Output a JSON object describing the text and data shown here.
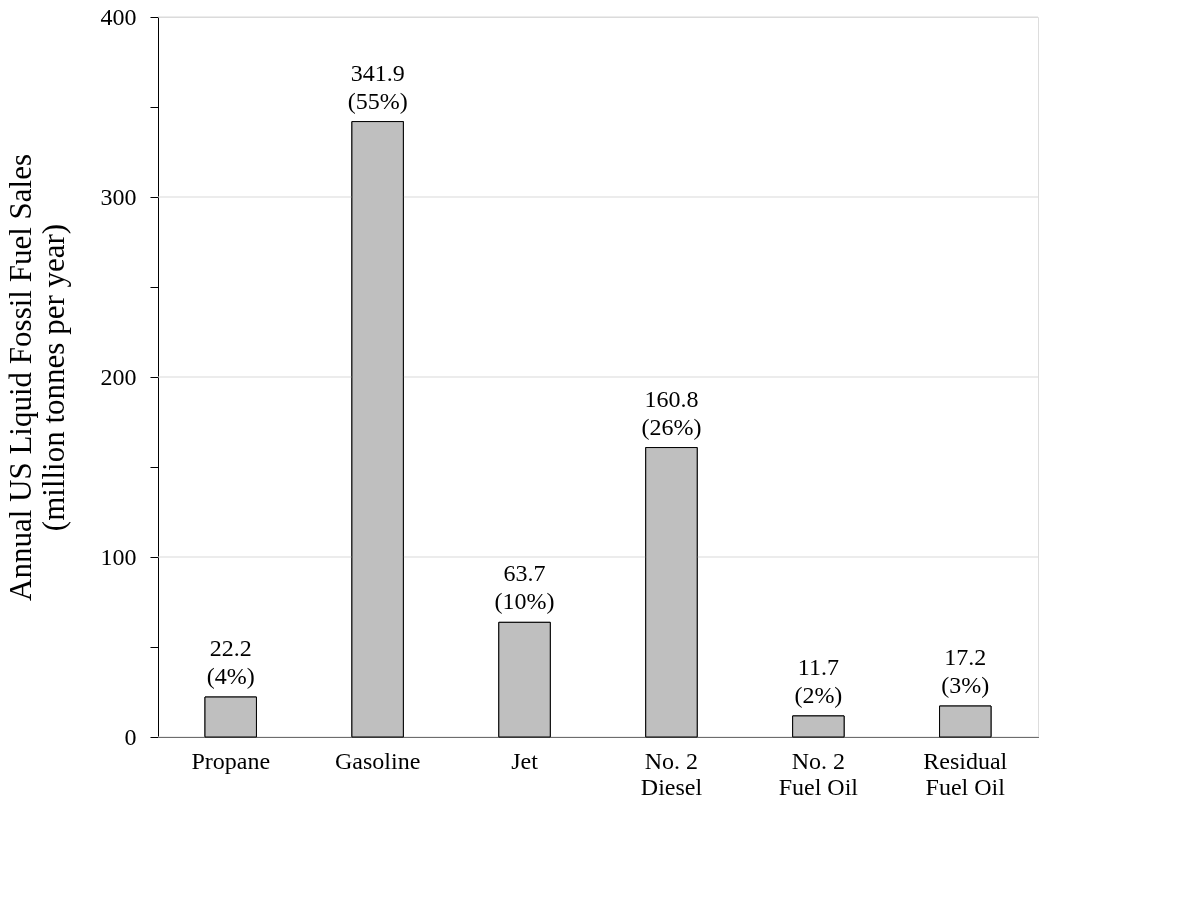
{
  "chart_data": {
    "type": "bar",
    "ylabel": "Annual US Liquid Fossil Fuel Sales\n(million tonnes per year)",
    "categories": [
      "Propane",
      "Gasoline",
      "Jet",
      "No. 2\nDiesel",
      "No. 2\nFuel Oil",
      "Residual\nFuel Oil"
    ],
    "values": [
      22.2,
      341.9,
      63.7,
      160.8,
      11.7,
      17.2
    ],
    "value_labels": [
      "22.2\n(4%)",
      "341.9\n(55%)",
      "63.7\n(10%)",
      "160.8\n(26%)",
      "11.7\n(2%)",
      "17.2\n(3%)"
    ],
    "color": "#bfbfbf",
    "ylim": [
      0,
      400
    ],
    "yticks": [
      0,
      {
        "value": 50,
        "label": null
      },
      100,
      {
        "value": 150,
        "label": null
      },
      200,
      {
        "value": 250,
        "label": null
      },
      300,
      {
        "value": 350,
        "label": null
      },
      400
    ],
    "grid": "y"
  }
}
